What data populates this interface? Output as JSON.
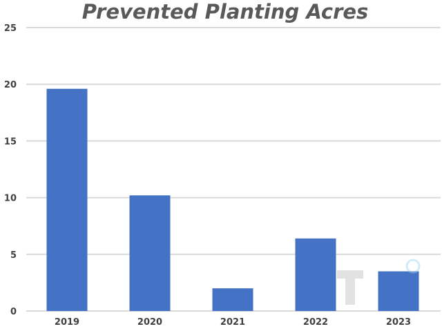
{
  "chart_data": {
    "type": "bar",
    "title": "Prevented Planting Acres",
    "categories": [
      "2019",
      "2020",
      "2021",
      "2022",
      "2023"
    ],
    "values": [
      19.6,
      10.2,
      2.0,
      6.4,
      3.5
    ],
    "ylim": [
      0,
      25
    ],
    "yticks": [
      "0",
      "5",
      "10",
      "15",
      "20",
      "25"
    ],
    "grid": true,
    "bar_color": "#4472c4"
  }
}
